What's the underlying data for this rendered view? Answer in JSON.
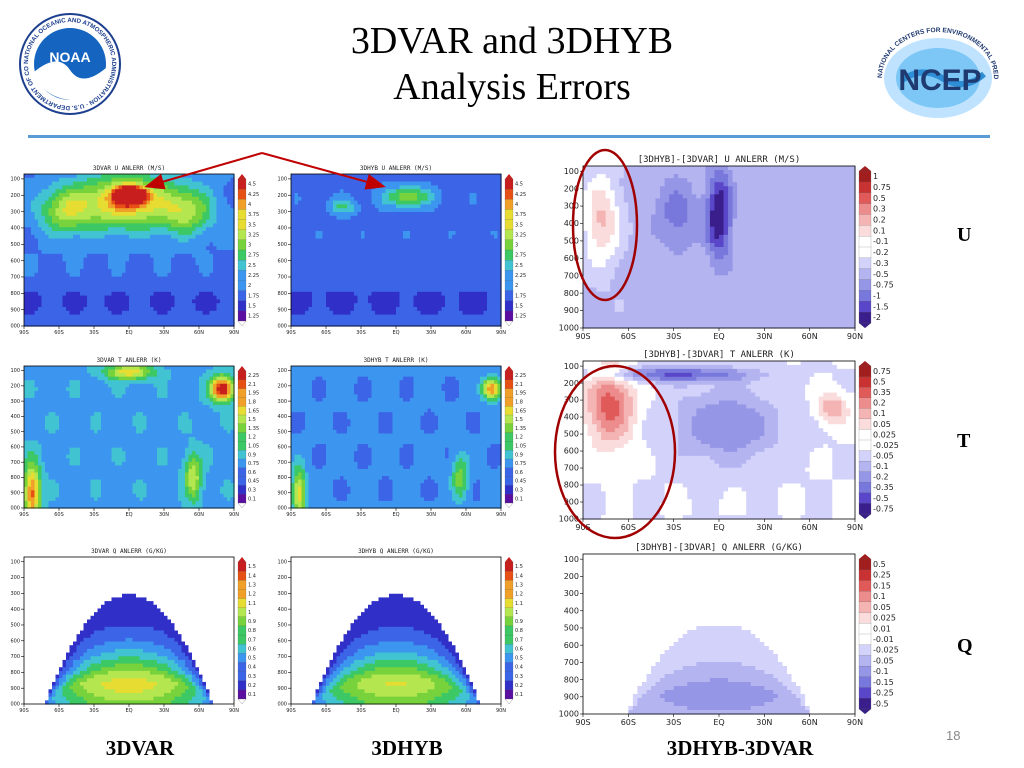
{
  "slide": {
    "title_line1": "3DVAR and 3DHYB",
    "title_line2": "Analysis Errors",
    "page_number": "18",
    "row_labels": [
      "U",
      "T",
      "Q"
    ],
    "column_labels": [
      "3DVAR",
      "3DHYB",
      "3DHYB-3DVAR"
    ]
  },
  "logos": {
    "noaa": {
      "center_text": "NOAA",
      "ring_text": "NATIONAL OCEANIC AND ATMOSPHERIC ADMINISTRATION · U.S. DEPARTMENT OF COMMERCE"
    },
    "ncep": {
      "center_text": "NCEP",
      "ring_text": "NATIONAL CENTERS FOR ENVIRONMENTAL PREDICTION"
    }
  },
  "colors": {
    "accent_rule": "#5b9bd5",
    "annotation": "#c00000",
    "error_scale": [
      "#ffffff",
      "#5a0fa0",
      "#3030c8",
      "#3c64e6",
      "#3c96f0",
      "#41c3d2",
      "#3cc864",
      "#78d23c",
      "#b4e650",
      "#e6dc32",
      "#f0a028",
      "#e65014",
      "#c81e1e"
    ],
    "diff_scale": [
      "#3a1e8c",
      "#5a46c8",
      "#7878dc",
      "#9696e6",
      "#b4b4f0",
      "#d2d2fa",
      "#ffffff",
      "#fadcdc",
      "#f5b4b4",
      "#ec8c8c",
      "#e05a5a",
      "#c83232",
      "#a01e1e"
    ]
  },
  "chart_data": [
    {
      "id": "u-3dvar",
      "type": "heatmap",
      "title": "3DVAR U ANLERR (M/S)",
      "x_ticks": [
        "90S",
        "60S",
        "30S",
        "EQ",
        "30N",
        "60N",
        "90N"
      ],
      "y_ticks": [
        "100",
        "200",
        "300",
        "400",
        "500",
        "600",
        "700",
        "800",
        "900",
        "1000"
      ],
      "legend": [
        "4.5",
        "4.25",
        "4",
        "3.75",
        "3.5",
        "3.25",
        "3",
        "2.75",
        "2.5",
        "2.25",
        "2",
        "1.75",
        "1.5",
        "1.25"
      ],
      "blobs": [
        {
          "x": -3,
          "y": 240,
          "sx": 42,
          "sy": 160,
          "v": 0.6
        },
        {
          "x": 2,
          "y": 200,
          "sx": 12,
          "sy": 50,
          "v": 1.0
        },
        {
          "x": -55,
          "y": 300,
          "sx": 22,
          "sy": 140,
          "v": 0.35
        },
        {
          "x": 50,
          "y": 300,
          "sx": 22,
          "sy": 140,
          "v": 0.35
        }
      ],
      "base": 0.22,
      "trough": {
        "p": 850,
        "v": 0.09
      }
    },
    {
      "id": "u-3dhyb",
      "type": "heatmap",
      "title": "3DHYB U ANLERR (M/S)",
      "x_ticks": [
        "90S",
        "60S",
        "30S",
        "EQ",
        "30N",
        "60N",
        "90N"
      ],
      "y_ticks": [
        "100",
        "200",
        "300",
        "400",
        "500",
        "600",
        "700",
        "800",
        "900",
        "1000"
      ],
      "legend": [
        "4.5",
        "4.25",
        "4",
        "3.75",
        "3.5",
        "3.25",
        "3",
        "2.75",
        "2.5",
        "2.25",
        "2",
        "1.75",
        "1.5",
        "1.25"
      ],
      "blobs": [
        {
          "x": 10,
          "y": 210,
          "sx": 20,
          "sy": 60,
          "v": 0.38
        },
        {
          "x": -45,
          "y": 270,
          "sx": 12,
          "sy": 50,
          "v": 0.22
        }
      ],
      "base": 0.2,
      "trough": {
        "p": 850,
        "v": 0.08
      }
    },
    {
      "id": "u-diff",
      "type": "heatmap",
      "title": "[3DHYB]-[3DVAR] U ANLERR (M/S)",
      "x_ticks": [
        "90S",
        "60S",
        "30S",
        "EQ",
        "30N",
        "60N",
        "90N"
      ],
      "y_ticks": [
        "100",
        "200",
        "300",
        "400",
        "500",
        "600",
        "700",
        "800",
        "900",
        "1000"
      ],
      "legend": [
        "1",
        "0.75",
        "0.5",
        "0.3",
        "0.2",
        "0.1",
        "-0.1",
        "-0.2",
        "-0.3",
        "-0.5",
        "-0.75",
        "-1",
        "-1.5",
        "-2"
      ],
      "blobs": [
        {
          "x": -78,
          "y": 380,
          "sx": 12,
          "sy": 260,
          "v": 0.35
        },
        {
          "x": 0,
          "y": 350,
          "sx": 8,
          "sy": 250,
          "v": -0.5
        },
        {
          "x": -28,
          "y": 350,
          "sx": 14,
          "sy": 200,
          "v": -0.22
        }
      ],
      "base": -0.18
    },
    {
      "id": "t-3dvar",
      "type": "heatmap",
      "title": "3DVAR T ANLERR (K)",
      "x_ticks": [
        "90S",
        "60S",
        "30S",
        "EQ",
        "30N",
        "60N",
        "90N"
      ],
      "y_ticks": [
        "100",
        "200",
        "300",
        "400",
        "500",
        "600",
        "700",
        "800",
        "900",
        "1000"
      ],
      "legend": [
        "2.25",
        "2.1",
        "1.95",
        "1.8",
        "1.65",
        "1.5",
        "1.35",
        "1.2",
        "1.05",
        "0.9",
        "0.75",
        "0.6",
        "0.45",
        "0.3",
        "0.1"
      ],
      "blobs": [
        {
          "x": 80,
          "y": 220,
          "sx": 10,
          "sy": 80,
          "v": 0.8
        },
        {
          "x": -83,
          "y": 900,
          "sx": 7,
          "sy": 190,
          "v": 0.6
        },
        {
          "x": 0,
          "y": 110,
          "sx": 20,
          "sy": 50,
          "v": 0.45
        },
        {
          "x": 55,
          "y": 800,
          "sx": 7,
          "sy": 150,
          "v": 0.38
        }
      ],
      "base": 0.3
    },
    {
      "id": "t-3dhyb",
      "type": "heatmap",
      "title": "3DHYB T ANLERR (K)",
      "x_ticks": [
        "90S",
        "60S",
        "30S",
        "EQ",
        "30N",
        "60N",
        "90N"
      ],
      "y_ticks": [
        "100",
        "200",
        "300",
        "400",
        "500",
        "600",
        "700",
        "800",
        "900",
        "1000"
      ],
      "legend": [
        "2.25",
        "2.1",
        "1.95",
        "1.8",
        "1.65",
        "1.5",
        "1.35",
        "1.2",
        "1.05",
        "0.9",
        "0.75",
        "0.6",
        "0.45",
        "0.3",
        "0.1"
      ],
      "blobs": [
        {
          "x": 82,
          "y": 220,
          "sx": 8,
          "sy": 70,
          "v": 0.65
        },
        {
          "x": -83,
          "y": 900,
          "sx": 6,
          "sy": 170,
          "v": 0.5
        },
        {
          "x": 55,
          "y": 800,
          "sx": 7,
          "sy": 150,
          "v": 0.32
        }
      ],
      "base": 0.24
    },
    {
      "id": "t-diff",
      "type": "heatmap",
      "title": "[3DHYB]-[3DVAR] T ANLERR (K)",
      "x_ticks": [
        "90S",
        "60S",
        "30S",
        "EQ",
        "30N",
        "60N",
        "90N"
      ],
      "y_ticks": [
        "100",
        "200",
        "300",
        "400",
        "500",
        "600",
        "700",
        "800",
        "900",
        "1000"
      ],
      "legend": [
        "0.75",
        "0.5",
        "0.35",
        "0.2",
        "0.1",
        "0.05",
        "0.025",
        "-0.025",
        "-0.05",
        "-0.1",
        "-0.2",
        "-0.35",
        "-0.5",
        "-0.75"
      ],
      "blobs": [
        {
          "x": -72,
          "y": 330,
          "sx": 16,
          "sy": 230,
          "v": 0.45
        },
        {
          "x": 75,
          "y": 350,
          "sx": 10,
          "sy": 90,
          "v": 0.3
        },
        {
          "x": 5,
          "y": 450,
          "sx": 35,
          "sy": 220,
          "v": -0.3
        },
        {
          "x": -30,
          "y": 150,
          "sx": 50,
          "sy": 45,
          "v": -0.4
        }
      ],
      "base": -0.05
    },
    {
      "id": "q-3dvar",
      "type": "heatmap",
      "title": "3DVAR Q ANLERR (G/KG)",
      "x_ticks": [
        "90S",
        "60S",
        "30S",
        "EQ",
        "30N",
        "60N",
        "90N"
      ],
      "y_ticks": [
        "100",
        "200",
        "300",
        "400",
        "500",
        "600",
        "700",
        "800",
        "900",
        "1000"
      ],
      "legend": [
        "1.5",
        "1.4",
        "1.3",
        "1.2",
        "1.1",
        "1",
        "0.9",
        "0.8",
        "0.7",
        "0.6",
        "0.5",
        "0.4",
        "0.3",
        "0.2",
        "0.1"
      ],
      "dome": {
        "peak": 0.75,
        "halfwidth": 72,
        "top": 310
      }
    },
    {
      "id": "q-3dhyb",
      "type": "heatmap",
      "title": "3DHYB Q ANLERR (G/KG)",
      "x_ticks": [
        "90S",
        "60S",
        "30S",
        "EQ",
        "30N",
        "60N",
        "90N"
      ],
      "y_ticks": [
        "100",
        "200",
        "300",
        "400",
        "500",
        "600",
        "700",
        "800",
        "900",
        "1000"
      ],
      "legend": [
        "1.5",
        "1.4",
        "1.3",
        "1.2",
        "1.1",
        "1",
        "0.9",
        "0.8",
        "0.7",
        "0.6",
        "0.5",
        "0.4",
        "0.3",
        "0.2",
        "0.1"
      ],
      "dome": {
        "peak": 0.7,
        "halfwidth": 72,
        "top": 310
      }
    },
    {
      "id": "q-diff",
      "type": "heatmap",
      "title": "[3DHYB]-[3DVAR] Q ANLERR (G/KG)",
      "x_ticks": [
        "90S",
        "60S",
        "30S",
        "EQ",
        "30N",
        "60N",
        "90N"
      ],
      "y_ticks": [
        "100",
        "200",
        "300",
        "400",
        "500",
        "600",
        "700",
        "800",
        "900",
        "1000"
      ],
      "legend": [
        "0.5",
        "0.25",
        "0.15",
        "0.1",
        "0.05",
        "0.025",
        "0.01",
        "-0.01",
        "-0.025",
        "-0.05",
        "-0.1",
        "-0.15",
        "-0.25",
        "-0.5"
      ],
      "dome": {
        "peak": -0.32,
        "halfwidth": 62,
        "top": 420
      }
    }
  ]
}
